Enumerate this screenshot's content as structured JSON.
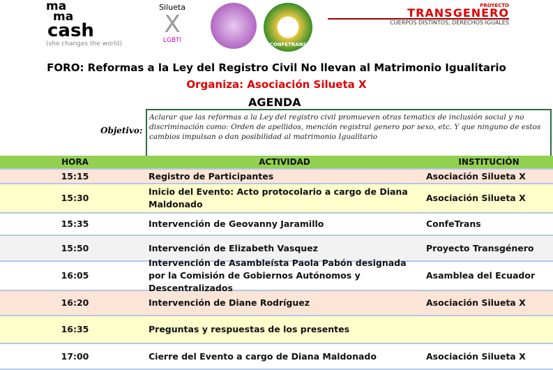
{
  "logos": {
    "mamacash": {
      "line1": "ma",
      "line2": "ma",
      "line3": "cash",
      "tagline": "(she changes the world)"
    },
    "silueta": {
      "name": "Silueta",
      "letter": "X",
      "sub": "LGBTI"
    },
    "confetrans": {
      "name": "CONFETRANS"
    },
    "transgenero": {
      "top": "PROYECTO",
      "name": "TRANSGENERO",
      "slogan": "CUERPOS DISTINTOS, DERECHOS IGUALES"
    }
  },
  "header": {
    "title": "FORO: Reformas a la Ley del Registro Civil No llevan al Matrimonio Igualitario",
    "organizer": "Organiza: Asociación Silueta X",
    "agenda": "AGENDA"
  },
  "objective": {
    "label": "Objetivo:",
    "text": "Aclarar que las reformas a la Ley del registro civil promueven otras tematics de inclusión social y no discriminación como: Orden de apellidos, mención registral genero por sexo, etc. Y que ninguno de estos cambios impulsan o dan posibilidad al matrimonio Igualitario"
  },
  "table": {
    "columns": [
      "HORA",
      "ACTIVIDAD",
      "INSTITUCIÓN"
    ],
    "rows": [
      [
        "15:15",
        "Registro de Participantes",
        "Asociación Silueta X"
      ],
      [
        "15:30",
        "Inicio del Evento: Acto protocolario  a cargo de Diana Maldonado",
        "Asociación Silueta X"
      ],
      [
        "15:35",
        "Intervención de Geovanny Jaramillo",
        "ConfeTrans"
      ],
      [
        "15:50",
        "Intervención de Elizabeth Vasquez",
        "Proyecto Transgénero"
      ],
      [
        "16:05",
        "Intervención de Asambleísta Paola Pabón designada por la Comisión de Gobiernos Autónomos y Descentralizados",
        "Asamblea del Ecuador"
      ],
      [
        "16:20",
        "Intervención de Diane Rodríguez",
        "Asociación Silueta X"
      ],
      [
        "16:35",
        "Preguntas y respuestas de los presentes",
        ""
      ],
      [
        "17:00",
        "Cierre del Evento a cargo de Diana Maldonado",
        "Asociación Silueta X"
      ]
    ]
  }
}
